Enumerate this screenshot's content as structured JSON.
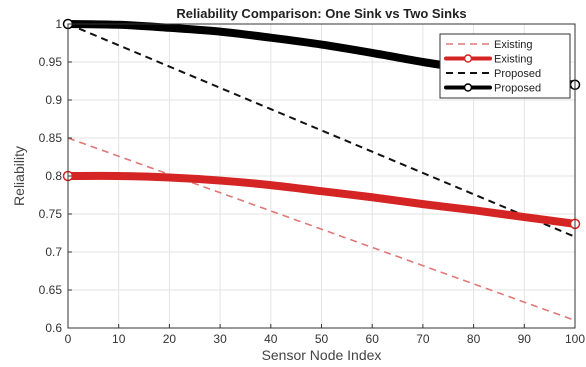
{
  "chart_data": {
    "type": "line",
    "title": "Reliability Comparison: One Sink vs Two Sinks",
    "xlabel": "Sensor Node Index",
    "ylabel": "Reliability",
    "xlim": [
      0,
      100
    ],
    "ylim": [
      0.6,
      1.0
    ],
    "xticks": [
      0,
      10,
      20,
      30,
      40,
      50,
      60,
      70,
      80,
      90,
      100
    ],
    "yticks": [
      0.6,
      0.65,
      0.7,
      0.75,
      0.8,
      0.85,
      0.9,
      0.95,
      1.0
    ],
    "ytick_labels": [
      "0.6",
      "0.65",
      "0.7",
      "0.75",
      "0.8",
      "0.85",
      "0.9",
      "0.95",
      "1"
    ],
    "grid": true,
    "legend_position": "top-right",
    "series": [
      {
        "name": "Existing",
        "style": "dashed",
        "color": "#e07878",
        "marker": "none",
        "x": [
          0,
          100
        ],
        "y": [
          0.85,
          0.61
        ]
      },
      {
        "name": "Existing",
        "style": "solid-thick",
        "color": "#d42424",
        "marker": "circle",
        "x": [
          0,
          10,
          20,
          30,
          40,
          50,
          60,
          70,
          80,
          90,
          100
        ],
        "y": [
          0.8,
          0.8,
          0.798,
          0.794,
          0.788,
          0.78,
          0.772,
          0.763,
          0.755,
          0.746,
          0.737
        ]
      },
      {
        "name": "Proposed",
        "style": "dashed",
        "color": "#111111",
        "marker": "none",
        "x": [
          0,
          100
        ],
        "y": [
          1.0,
          0.72
        ]
      },
      {
        "name": "Proposed",
        "style": "solid-thick",
        "color": "#000000",
        "marker": "circle",
        "x": [
          0,
          10,
          20,
          30,
          40,
          50,
          60,
          70,
          80,
          90,
          100
        ],
        "y": [
          1.0,
          0.999,
          0.995,
          0.99,
          0.982,
          0.973,
          0.962,
          0.95,
          0.94,
          0.93,
          0.92
        ]
      }
    ]
  }
}
